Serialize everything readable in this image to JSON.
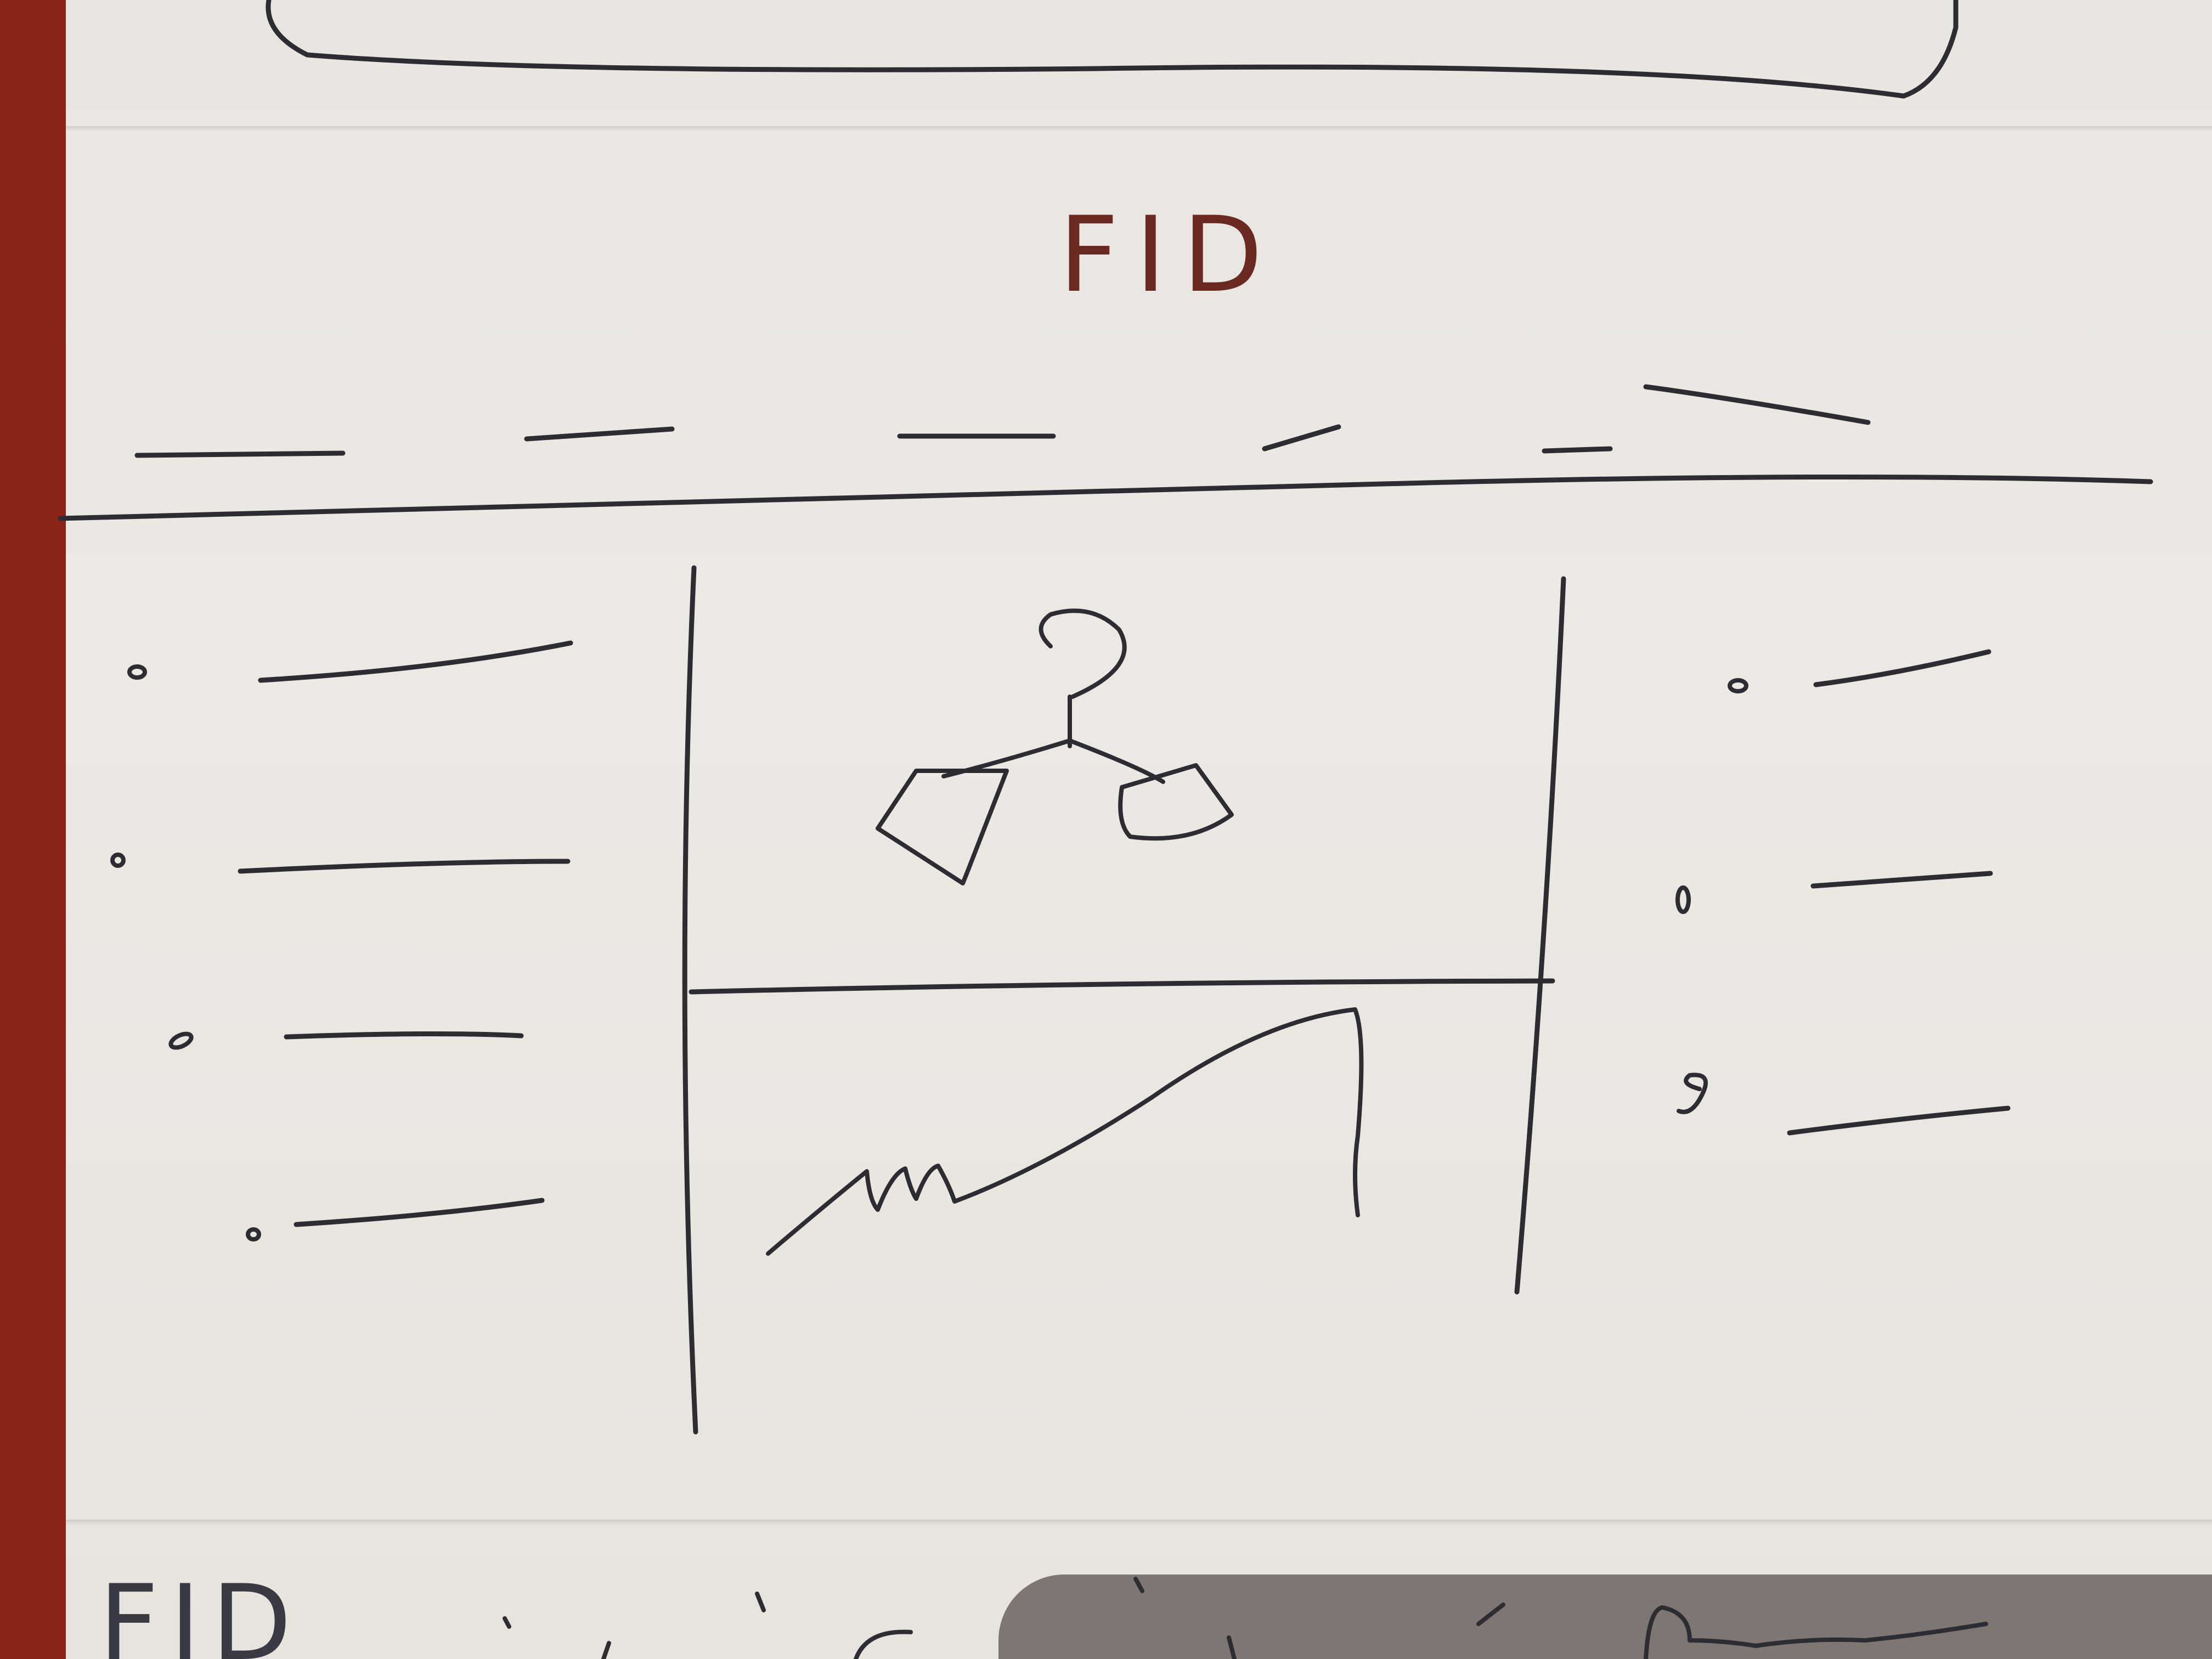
{
  "header": {
    "logo_text": "FID"
  },
  "nav": {
    "items": [
      "",
      "",
      "",
      "",
      "",
      ""
    ]
  },
  "left_list": {
    "items": [
      "",
      "",
      "",
      ""
    ]
  },
  "right_list": {
    "items": [
      "",
      "",
      ""
    ]
  },
  "main": {
    "image_icon": "network-diagram-icon",
    "chart_icon": "line-chart-icon"
  },
  "footer": {
    "logo_text": "FID"
  },
  "colors": {
    "paper": "#ece9e4",
    "ink": "#2d2c33",
    "title_ink": "#6a2a22",
    "background": "#8a2418"
  }
}
